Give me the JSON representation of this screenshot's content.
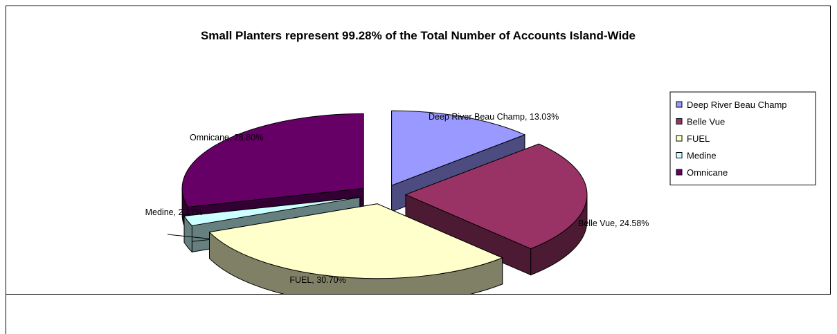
{
  "chart_data": {
    "type": "pie",
    "title": "Small Planters represent 99.28% of the Total Number of Accounts Island-Wide",
    "legend_position": "right",
    "exploded": true,
    "three_d": true,
    "slices": [
      {
        "name": "Deep River Beau Champ",
        "value": 13.03,
        "label": "Deep River Beau Champ, 13.03%",
        "color": "#9999ff",
        "side_color": "#4c4c80"
      },
      {
        "name": "Belle Vue",
        "value": 24.58,
        "label": "Belle Vue, 24.58%",
        "color": "#993366",
        "side_color": "#4d1a33"
      },
      {
        "name": "FUEL",
        "value": 30.7,
        "label": "FUEL, 30.70%",
        "color": "#ffffcc",
        "side_color": "#808066"
      },
      {
        "name": "Medine",
        "value": 2.17,
        "label": "Medine, 2.17%",
        "color": "#ccffff",
        "side_color": "#668080"
      },
      {
        "name": "Omnicane",
        "value": 28.8,
        "label": "Omnicane, 28.80%",
        "color": "#660066",
        "side_color": "#330033"
      }
    ]
  }
}
